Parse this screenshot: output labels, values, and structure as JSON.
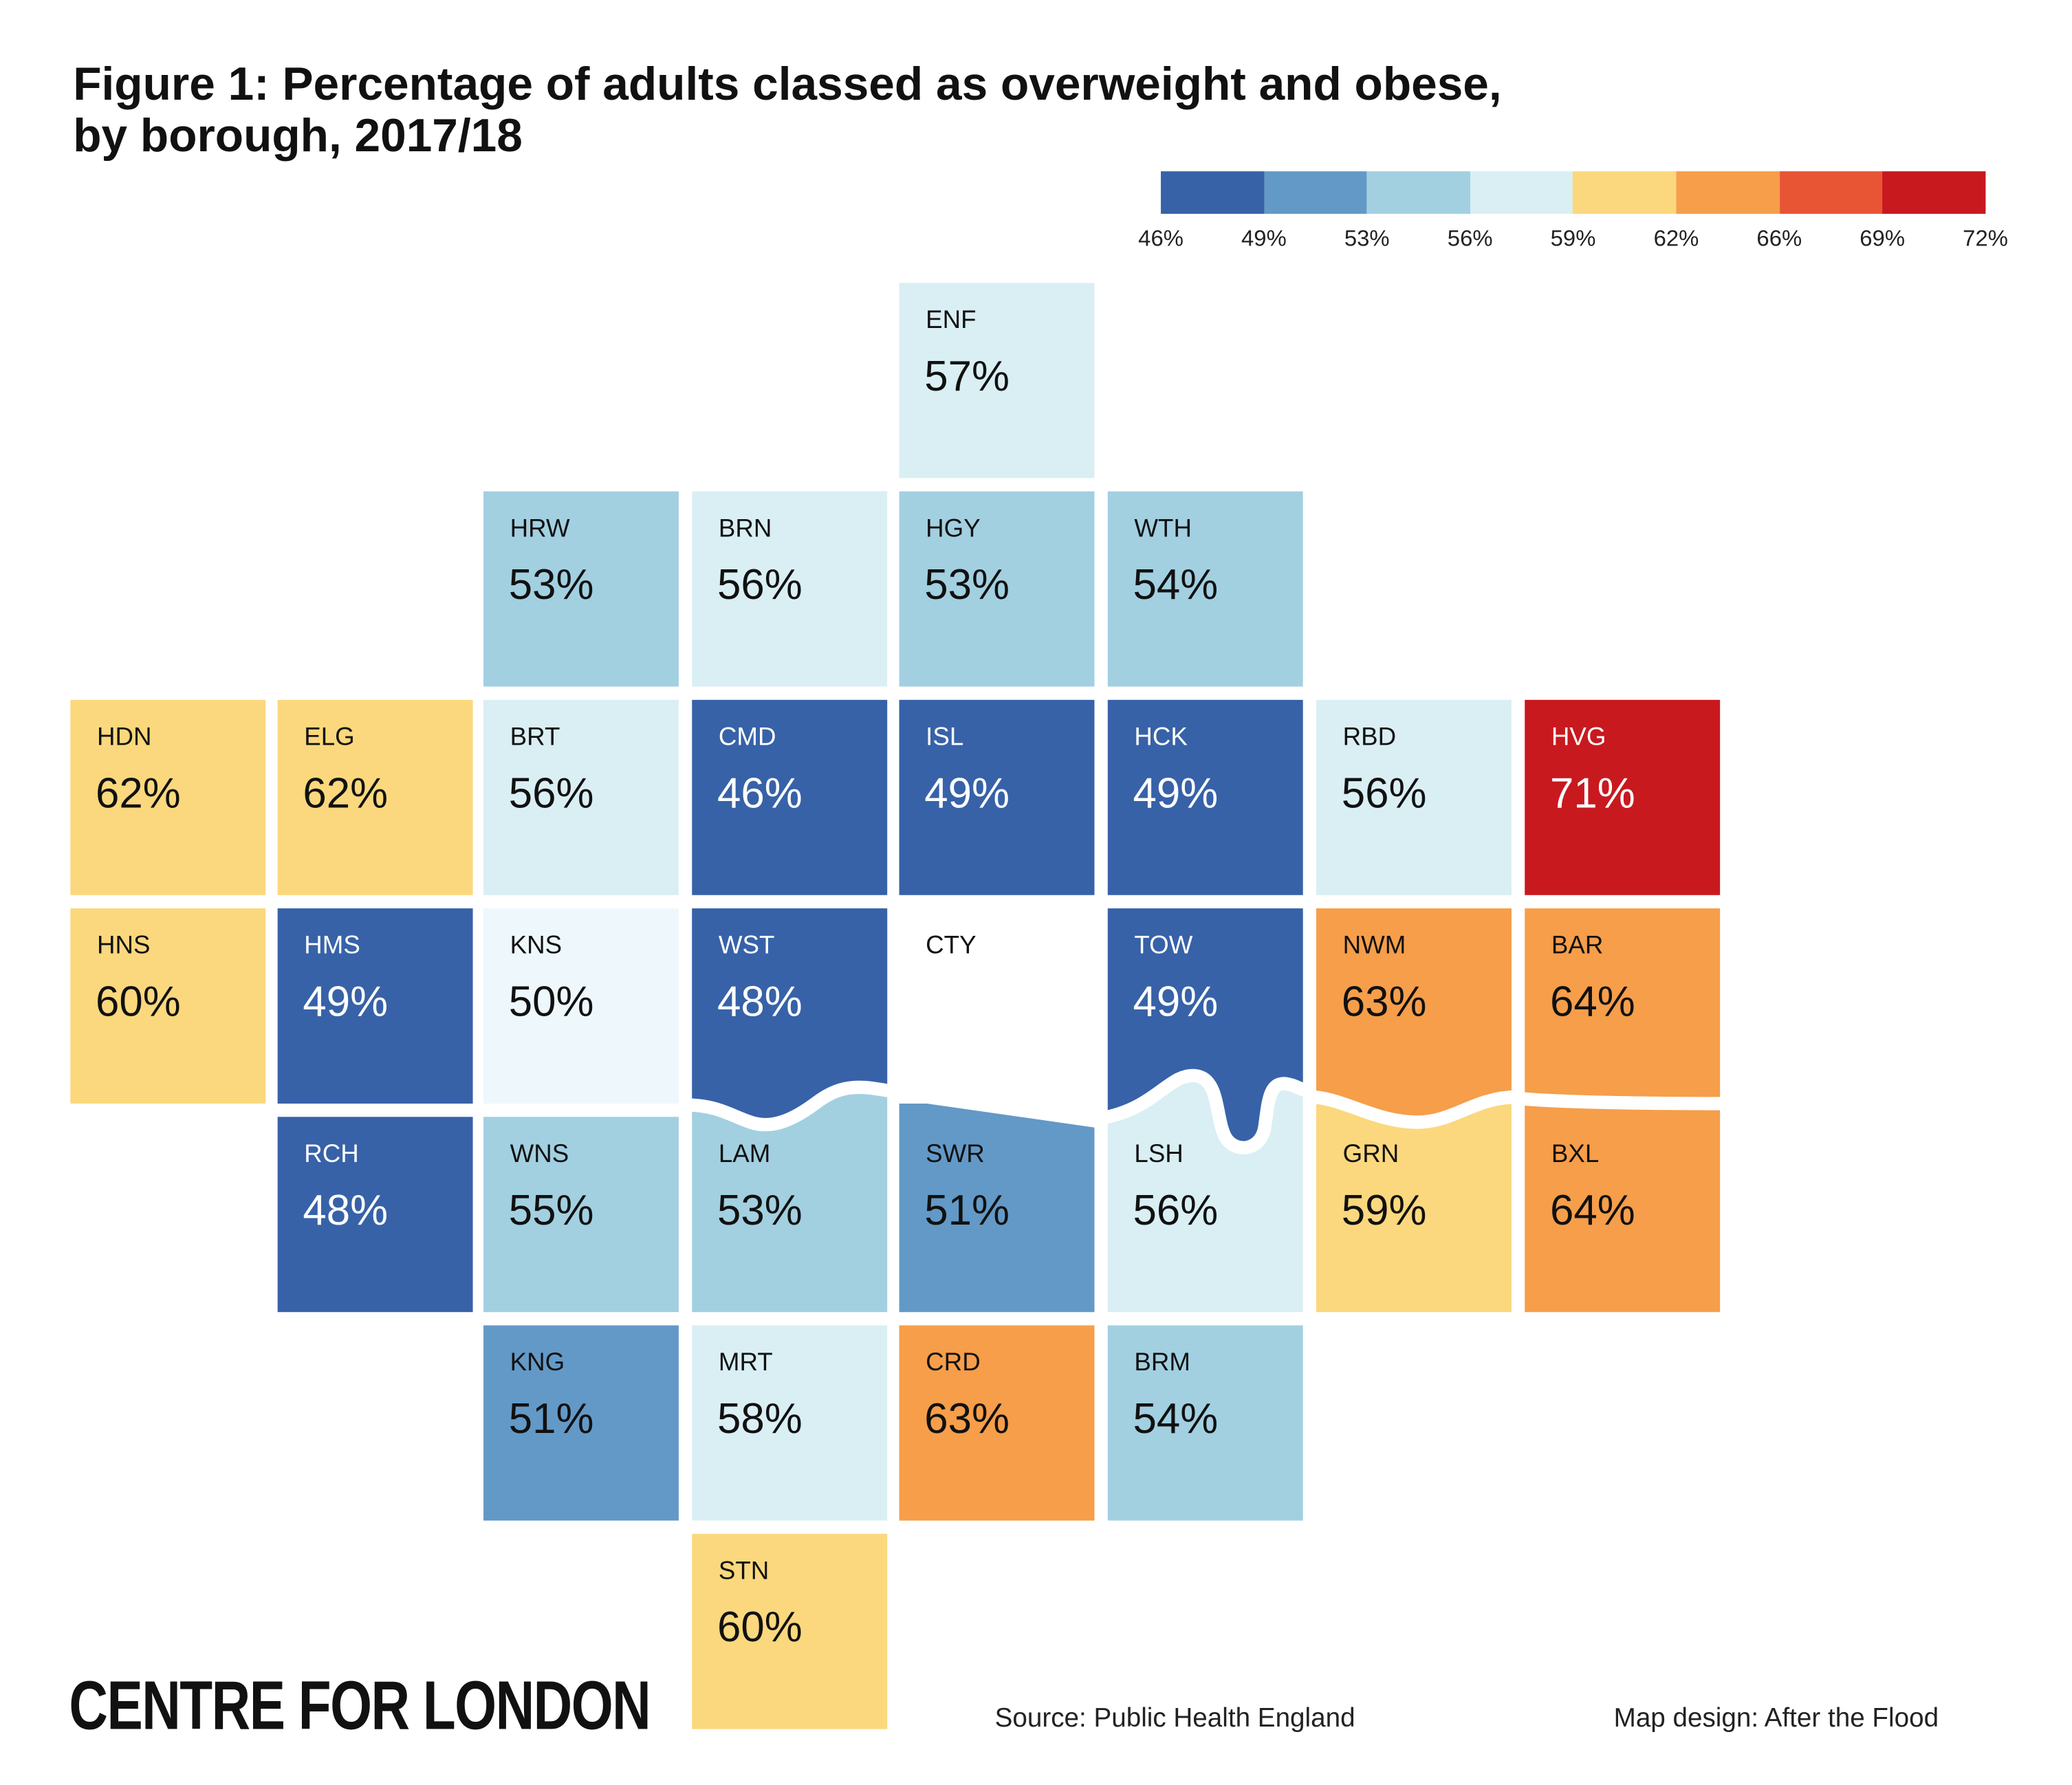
{
  "title": {
    "line1": "Figure 1: Percentage of adults classed as overweight and obese,",
    "line2": "by borough, 2017/18"
  },
  "legend": {
    "colors": [
      "#3762a8",
      "#6399c7",
      "#a2d0e1",
      "#d9eff4",
      "#fbd87d",
      "#f69e4a",
      "#e85535",
      "#c8191f"
    ],
    "labels": [
      "46%",
      "49%",
      "53%",
      "56%",
      "59%",
      "62%",
      "66%",
      "69%",
      "72%"
    ]
  },
  "tiles": [
    {
      "code": "ENF",
      "value": "57%",
      "fill": "#d9eff4"
    },
    {
      "code": "HRW",
      "value": "53%",
      "fill": "#a2d0e1"
    },
    {
      "code": "BRN",
      "value": "56%",
      "fill": "#d9eff4"
    },
    {
      "code": "HGY",
      "value": "53%",
      "fill": "#a2d0e1"
    },
    {
      "code": "WTH",
      "value": "54%",
      "fill": "#a2d0e1"
    },
    {
      "code": "HDN",
      "value": "62%",
      "fill": "#fbd87d"
    },
    {
      "code": "ELG",
      "value": "62%",
      "fill": "#fbd87d"
    },
    {
      "code": "BRT",
      "value": "56%",
      "fill": "#d9eff4"
    },
    {
      "code": "CMD",
      "value": "46%",
      "fill": "#3762a8"
    },
    {
      "code": "ISL",
      "value": "49%",
      "fill": "#3762a8"
    },
    {
      "code": "HCK",
      "value": "49%",
      "fill": "#3762a8"
    },
    {
      "code": "RBD",
      "value": "56%",
      "fill": "#d9eff4"
    },
    {
      "code": "HVG",
      "value": "71%",
      "fill": "#c8191f"
    },
    {
      "code": "HNS",
      "value": "60%",
      "fill": "#fbd87d"
    },
    {
      "code": "HMS",
      "value": "49%",
      "fill": "#3762a8"
    },
    {
      "code": "KNS",
      "value": "50%",
      "fill": "#eef8fc"
    },
    {
      "code": "WST",
      "value": "48%",
      "fill": "#3762a8"
    },
    {
      "code": "CTY",
      "value": "",
      "fill": "#ffffff"
    },
    {
      "code": "TOW",
      "value": "49%",
      "fill": "#3762a8"
    },
    {
      "code": "NWM",
      "value": "63%",
      "fill": "#f69e4a"
    },
    {
      "code": "BAR",
      "value": "64%",
      "fill": "#f69e4a"
    },
    {
      "code": "RCH",
      "value": "48%",
      "fill": "#3762a8"
    },
    {
      "code": "WNS",
      "value": "55%",
      "fill": "#a2d0e1"
    },
    {
      "code": "LAM",
      "value": "53%",
      "fill": "#a2d0e1"
    },
    {
      "code": "SWR",
      "value": "51%",
      "fill": "#6399c7"
    },
    {
      "code": "LSH",
      "value": "56%",
      "fill": "#d9eff4"
    },
    {
      "code": "GRN",
      "value": "59%",
      "fill": "#fbd87d"
    },
    {
      "code": "BXL",
      "value": "64%",
      "fill": "#f69e4a"
    },
    {
      "code": "KNG",
      "value": "51%",
      "fill": "#6399c7"
    },
    {
      "code": "MRT",
      "value": "58%",
      "fill": "#d9eff4"
    },
    {
      "code": "CRD",
      "value": "63%",
      "fill": "#f69e4a"
    },
    {
      "code": "BRM",
      "value": "54%",
      "fill": "#a2d0e1"
    },
    {
      "code": "STN",
      "value": "60%",
      "fill": "#fbd87d"
    }
  ],
  "footer": {
    "logo": "CENTRE FOR LONDON",
    "source": "Source: Public Health England",
    "credit": "Map design: After the Flood"
  }
}
